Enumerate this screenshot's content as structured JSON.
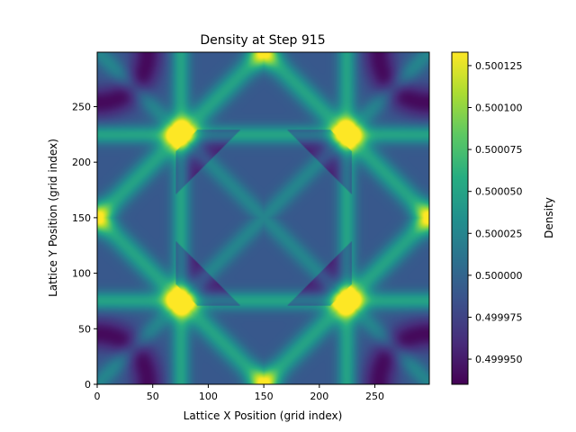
{
  "chart_data": {
    "type": "heatmap",
    "title": "Density at Step 915",
    "xlabel": "Lattice X Position (grid index)",
    "ylabel": "Lattice Y Position (grid index)",
    "xlim": [
      0,
      299
    ],
    "ylim": [
      0,
      299
    ],
    "x_ticks": [
      0,
      50,
      100,
      150,
      200,
      250
    ],
    "y_ticks": [
      0,
      50,
      100,
      150,
      200,
      250
    ],
    "colormap": "viridis",
    "colorbar": {
      "label": "Density",
      "range": [
        0.499935,
        0.500133
      ],
      "ticks": [
        "0.499950",
        "0.499975",
        "0.500000",
        "0.500025",
        "0.500050",
        "0.500075",
        "0.500100",
        "0.500125"
      ]
    },
    "field": {
      "description_values": "density deviation field on a 300x300 lattice",
      "base": 0.5,
      "center_plateau": 0.49999,
      "bright_spots": [
        {
          "x": 75,
          "y": 225,
          "value": 0.500128
        },
        {
          "x": 225,
          "y": 225,
          "value": 0.500128
        },
        {
          "x": 75,
          "y": 75,
          "value": 0.500128
        },
        {
          "x": 225,
          "y": 75,
          "value": 0.500128
        },
        {
          "x": 0,
          "y": 150,
          "value": 0.50011
        },
        {
          "x": 299,
          "y": 150,
          "value": 0.50011
        },
        {
          "x": 150,
          "y": 299,
          "value": 0.50011
        },
        {
          "x": 150,
          "y": 0,
          "value": 0.50011
        }
      ]
    }
  }
}
